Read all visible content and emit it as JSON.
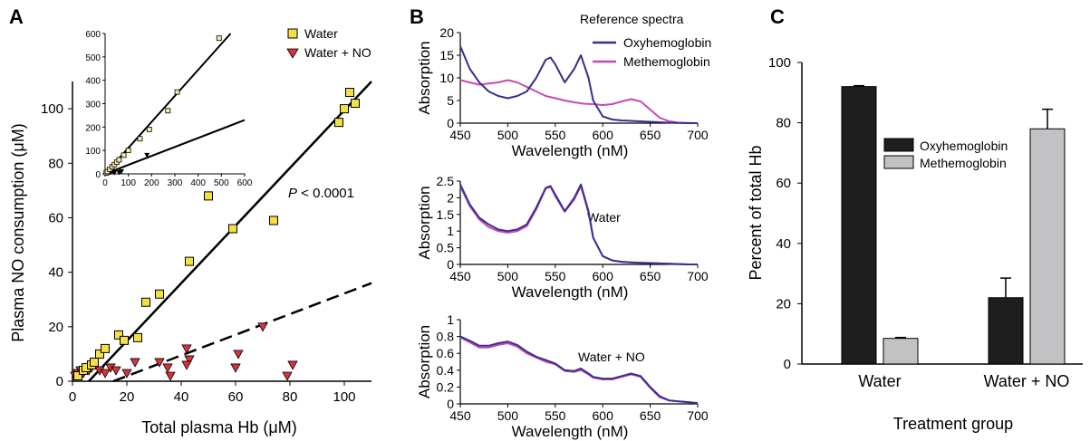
{
  "panel_labels": {
    "a": "A",
    "b": "B",
    "c": "C"
  },
  "colors": {
    "water_marker": "#f2e046",
    "water_no_marker": "#d9323a",
    "oxy_line": "#3a2f8f",
    "met_line": "#c64ab0",
    "oxy_bar": "#1e1e1e",
    "met_bar": "#c2c2c4"
  },
  "chart_data": [
    {
      "id": "A",
      "type": "scatter",
      "xlabel": "Total plasma Hb (μM)",
      "ylabel": "Plasma NO consumption (μM)",
      "xlim": [
        0,
        110
      ],
      "ylim": [
        0,
        110
      ],
      "xticks": [
        "0",
        "20",
        "40",
        "60",
        "80",
        "100"
      ],
      "yticks": [
        "0",
        "20",
        "40",
        "60",
        "80",
        "100"
      ],
      "annotation": "P < 0.0001",
      "annotation_parts": {
        "italic": "P",
        "rest": " < 0.0001"
      },
      "legend": [
        "Water",
        "Water + NO"
      ],
      "series": [
        {
          "name": "Water",
          "marker": "square",
          "x": [
            2,
            4,
            5,
            7,
            8,
            10,
            12,
            17,
            19,
            24,
            27,
            32,
            43,
            50,
            59,
            74,
            98,
            100,
            102,
            104
          ],
          "y": [
            2,
            4,
            5,
            6,
            7,
            10,
            12,
            17,
            15,
            16,
            29,
            32,
            44,
            68,
            56,
            59,
            95,
            100,
            106,
            102
          ]
        },
        {
          "name": "Water + NO",
          "marker": "triangle-down",
          "x": [
            1,
            2,
            3,
            4,
            6,
            7,
            10,
            12,
            14,
            16,
            20,
            23,
            32,
            35,
            36,
            42,
            43,
            42,
            60,
            61,
            70,
            79,
            81
          ],
          "y": [
            2,
            3,
            4,
            3,
            4,
            5,
            4,
            3,
            5,
            4,
            3,
            7,
            7,
            5,
            2,
            12,
            8,
            6,
            5,
            10,
            20,
            2,
            6
          ]
        }
      ],
      "fit_lines": [
        {
          "series": "Water",
          "style": "solid",
          "x": [
            6,
            110
          ],
          "y": [
            0,
            110
          ]
        },
        {
          "series": "Water + NO",
          "style": "dashed",
          "x": [
            15,
            110
          ],
          "y": [
            0,
            36
          ]
        }
      ],
      "inset": {
        "xlim": [
          0,
          600
        ],
        "ylim": [
          0,
          600
        ],
        "xticks": [
          "0",
          "100",
          "200",
          "300",
          "400",
          "500",
          "600"
        ],
        "yticks": [
          "0",
          "100",
          "200",
          "300",
          "400",
          "500",
          "600"
        ],
        "water": {
          "x": [
            5,
            10,
            20,
            30,
            40,
            50,
            60,
            80,
            100,
            150,
            190,
            270,
            310,
            490
          ],
          "y": [
            5,
            10,
            20,
            30,
            40,
            50,
            60,
            80,
            100,
            150,
            190,
            270,
            350,
            580
          ]
        },
        "water_no": {
          "x": [
            5,
            10,
            15,
            20,
            30,
            40,
            60,
            70,
            180
          ],
          "y": [
            2,
            3,
            4,
            5,
            8,
            5,
            6,
            10,
            80
          ]
        },
        "fit_lines": [
          {
            "x": [
              0,
              540
            ],
            "y": [
              0,
              600
            ]
          },
          {
            "x": [
              0,
              600
            ],
            "y": [
              0,
              230
            ]
          }
        ]
      }
    },
    {
      "id": "B",
      "type": "line",
      "panels": [
        {
          "ylabel": "Absorption",
          "xlabel": "Wavelength (nM)",
          "xlim": [
            450,
            700
          ],
          "ylim": [
            0,
            20
          ],
          "xticks": [
            "450",
            "500",
            "550",
            "600",
            "650",
            "700"
          ],
          "yticks": [
            "0",
            "5",
            "10",
            "15",
            "20"
          ],
          "legend_title": "Reference spectra",
          "series": [
            {
              "name": "Oxyhemoglobin",
              "x": [
                450,
                460,
                470,
                480,
                490,
                500,
                510,
                520,
                530,
                540,
                545,
                550,
                560,
                570,
                577,
                585,
                590,
                600,
                610,
                620,
                630,
                640,
                650,
                660,
                670,
                680,
                690,
                700
              ],
              "y": [
                17,
                12,
                9,
                7,
                6,
                5.5,
                6,
                7,
                10,
                14,
                14.5,
                13,
                9,
                12,
                15,
                10,
                5,
                1.5,
                0.8,
                0.6,
                0.5,
                0.4,
                0.3,
                0.2,
                0.1,
                0.05,
                0,
                0
              ]
            },
            {
              "name": "Methemoglobin",
              "x": [
                450,
                470,
                490,
                500,
                510,
                520,
                530,
                540,
                550,
                560,
                570,
                580,
                590,
                600,
                610,
                620,
                630,
                640,
                650,
                660,
                670,
                680,
                690,
                700
              ],
              "y": [
                9.5,
                8.5,
                9,
                9.5,
                9,
                8,
                7,
                6,
                5.5,
                5,
                4.6,
                4.3,
                4.2,
                4,
                4.2,
                4.8,
                5.3,
                4.8,
                3,
                1.2,
                0.4,
                0.1,
                0.05,
                0
              ]
            }
          ]
        },
        {
          "ylabel": "Absorption",
          "xlabel": "Wavelength (nM)",
          "xlim": [
            450,
            700
          ],
          "ylim": [
            0,
            2.5
          ],
          "xticks": [
            "450",
            "500",
            "550",
            "600",
            "650",
            "700"
          ],
          "yticks": [
            "0",
            "0.5",
            "1",
            "1.5",
            "2",
            "2.5"
          ],
          "label": "Water",
          "series": [
            {
              "name": "Oxyhemoglobin",
              "x": [
                450,
                460,
                470,
                480,
                490,
                500,
                510,
                520,
                530,
                540,
                545,
                550,
                560,
                570,
                577,
                585,
                590,
                600,
                610,
                620,
                630,
                640,
                650,
                660,
                670,
                680,
                690,
                700
              ],
              "y": [
                2.4,
                1.8,
                1.4,
                1.2,
                1.05,
                1,
                1.05,
                1.2,
                1.7,
                2.3,
                2.35,
                2.1,
                1.6,
                2,
                2.4,
                1.6,
                0.8,
                0.25,
                0.12,
                0.08,
                0.06,
                0.05,
                0.04,
                0.03,
                0.02,
                0.01,
                0,
                0
              ]
            },
            {
              "name": "Methemoglobin",
              "x": [
                450,
                460,
                470,
                480,
                490,
                500,
                510,
                520,
                530,
                540,
                545,
                550,
                560,
                570,
                577,
                585,
                590,
                600,
                610,
                620,
                630,
                640,
                650,
                660,
                670,
                680,
                690,
                700
              ],
              "y": [
                2.35,
                1.75,
                1.35,
                1.12,
                1,
                0.95,
                1,
                1.15,
                1.65,
                2.28,
                2.33,
                2.05,
                1.58,
                1.95,
                2.35,
                1.55,
                0.8,
                0.25,
                0.12,
                0.08,
                0.06,
                0.05,
                0.04,
                0.03,
                0.02,
                0.01,
                0,
                0
              ]
            }
          ]
        },
        {
          "ylabel": "Absorption",
          "xlabel": "Wavelength (nM)",
          "xlim": [
            450,
            700
          ],
          "ylim": [
            0,
            1
          ],
          "xticks": [
            "450",
            "500",
            "550",
            "600",
            "650",
            "700"
          ],
          "yticks": [
            "0",
            "0.2",
            "0.4",
            "0.6",
            "0.8",
            "1"
          ],
          "label": "Water + NO",
          "series": [
            {
              "name": "Oxyhemoglobin",
              "x": [
                450,
                460,
                470,
                480,
                490,
                500,
                510,
                520,
                530,
                540,
                550,
                560,
                570,
                577,
                585,
                590,
                600,
                610,
                620,
                630,
                640,
                650,
                660,
                670,
                680,
                690,
                700
              ],
              "y": [
                0.8,
                0.75,
                0.69,
                0.69,
                0.72,
                0.74,
                0.7,
                0.62,
                0.56,
                0.52,
                0.48,
                0.4,
                0.39,
                0.42,
                0.36,
                0.32,
                0.3,
                0.3,
                0.33,
                0.36,
                0.33,
                0.2,
                0.09,
                0.04,
                0.03,
                0.02,
                0.01
              ]
            },
            {
              "name": "Methemoglobin",
              "x": [
                450,
                460,
                470,
                480,
                490,
                500,
                510,
                520,
                530,
                540,
                550,
                560,
                570,
                577,
                585,
                590,
                600,
                610,
                620,
                630,
                640,
                650,
                660,
                670,
                680,
                690,
                700
              ],
              "y": [
                0.79,
                0.73,
                0.67,
                0.67,
                0.7,
                0.72,
                0.68,
                0.6,
                0.55,
                0.5,
                0.47,
                0.39,
                0.38,
                0.4,
                0.35,
                0.31,
                0.29,
                0.29,
                0.32,
                0.35,
                0.32,
                0.19,
                0.08,
                0.04,
                0.03,
                0.02,
                0.01
              ]
            }
          ]
        }
      ]
    },
    {
      "id": "C",
      "type": "bar",
      "categories": [
        "Water",
        "Water + NO"
      ],
      "xlabel": "Treatment group",
      "ylabel": "Percent of total Hb",
      "ylim": [
        0,
        100
      ],
      "yticks": [
        "0",
        "20",
        "40",
        "60",
        "80",
        "100"
      ],
      "series": [
        {
          "name": "Oxyhemoglobin",
          "values": [
            92,
            22
          ],
          "errors": [
            0.3,
            6.5
          ]
        },
        {
          "name": "Methemoglobin",
          "values": [
            8.5,
            78
          ],
          "errors": [
            0.3,
            6.5
          ]
        }
      ]
    }
  ]
}
